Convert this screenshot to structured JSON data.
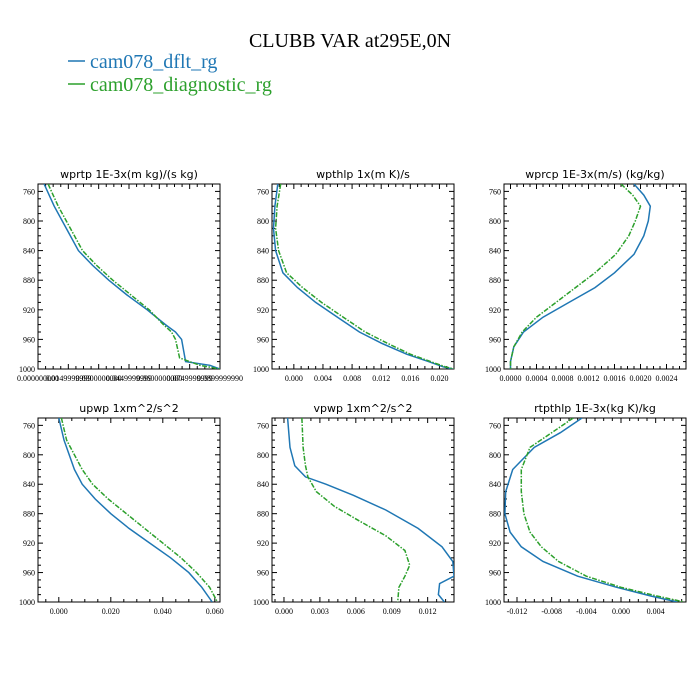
{
  "figure": {
    "title": "CLUBB VAR at295E,0N",
    "legend": [
      {
        "label": "cam078_dflt_rg",
        "color": "#1f77b4"
      },
      {
        "label": "cam078_diagnostic_rg",
        "color": "#2ca02c"
      }
    ]
  },
  "chart_data": [
    {
      "type": "line",
      "title": "wprtp  1E-3x(m kg)/(s kg)",
      "xlim": [
        0,
        0.09
      ],
      "ylim": [
        1000,
        750
      ],
      "xticks": [
        0,
        0.015,
        0.03,
        0.045,
        0.06,
        0.075,
        0.09
      ],
      "xtick_labels": [
        "0.000000000",
        "0.0149999999",
        "0.0300000000",
        "0.0449999999",
        "0.0600000000",
        "0.0749999999",
        "0.0899999990"
      ],
      "yticks": [
        760,
        800,
        840,
        880,
        920,
        960,
        1000
      ],
      "series": [
        {
          "name": "cam078_dflt_rg",
          "color": "#1f77b4",
          "dash": false,
          "x": [
            0.003,
            0.008,
            0.014,
            0.02,
            0.027,
            0.035,
            0.044,
            0.054,
            0.063,
            0.068,
            0.071,
            0.073,
            0.085,
            0.09
          ],
          "y": [
            750,
            780,
            810,
            840,
            860,
            880,
            900,
            920,
            940,
            950,
            960,
            990,
            995,
            1000
          ]
        },
        {
          "name": "cam078_diagnostic_rg",
          "color": "#2ca02c",
          "dash": true,
          "x": [
            0.005,
            0.01,
            0.016,
            0.022,
            0.029,
            0.037,
            0.046,
            0.055,
            0.062,
            0.066,
            0.068,
            0.07,
            0.08,
            0.09
          ],
          "y": [
            750,
            780,
            810,
            840,
            860,
            880,
            900,
            920,
            940,
            950,
            960,
            985,
            995,
            1000
          ]
        }
      ]
    },
    {
      "type": "line",
      "title": "wpthlp  1x(m K)/s",
      "xlim": [
        -0.003,
        0.022
      ],
      "ylim": [
        1000,
        750
      ],
      "xticks": [
        0,
        0.004,
        0.008,
        0.012,
        0.016,
        0.02
      ],
      "xtick_labels": [
        "0.000",
        "0.004",
        "0.008",
        "0.012",
        "0.016",
        "0.020"
      ],
      "yticks": [
        760,
        800,
        840,
        880,
        920,
        960,
        1000
      ],
      "series": [
        {
          "name": "cam078_dflt_rg",
          "color": "#1f77b4",
          "dash": false,
          "x": [
            -0.0022,
            -0.0026,
            -0.0028,
            -0.0025,
            -0.0015,
            0.0005,
            0.003,
            0.006,
            0.009,
            0.012,
            0.0155,
            0.0185,
            0.0205,
            0.0218
          ],
          "y": [
            750,
            780,
            810,
            840,
            870,
            890,
            910,
            930,
            950,
            965,
            980,
            990,
            997,
            1000
          ]
        },
        {
          "name": "cam078_diagnostic_rg",
          "color": "#2ca02c",
          "dash": true,
          "x": [
            -0.0018,
            -0.0023,
            -0.0025,
            -0.0021,
            -0.001,
            0.0012,
            0.0038,
            0.0068,
            0.0098,
            0.0128,
            0.016,
            0.0188,
            0.0208,
            0.022
          ],
          "y": [
            750,
            780,
            810,
            840,
            870,
            890,
            910,
            930,
            950,
            965,
            980,
            990,
            997,
            1000
          ]
        }
      ]
    },
    {
      "type": "line",
      "title": "wprcp  1E-3x(m/s) (kg/kg)",
      "xlim": [
        -0.0001,
        0.0027
      ],
      "ylim": [
        1000,
        750
      ],
      "xticks": [
        0,
        0.0004,
        0.0008,
        0.0012,
        0.0016,
        0.002,
        0.0024
      ],
      "xtick_labels": [
        "0.0000",
        "0.0004",
        "0.0008",
        "0.0012",
        "0.0016",
        "0.0020",
        "0.0024"
      ],
      "yticks": [
        760,
        800,
        840,
        880,
        920,
        960,
        1000
      ],
      "series": [
        {
          "name": "cam078_dflt_rg",
          "color": "#1f77b4",
          "dash": false,
          "x": [
            0.0019,
            0.00205,
            0.00215,
            0.00212,
            0.00205,
            0.0019,
            0.0016,
            0.0013,
            0.0009,
            0.0005,
            0.0002,
            5e-05,
            0.0,
            0.0
          ],
          "y": [
            750,
            765,
            780,
            800,
            820,
            845,
            870,
            890,
            910,
            930,
            950,
            970,
            990,
            1000
          ]
        },
        {
          "name": "cam078_diagnostic_rg",
          "color": "#2ca02c",
          "dash": true,
          "x": [
            0.0017,
            0.00188,
            0.002,
            0.00192,
            0.00182,
            0.00162,
            0.0013,
            0.001,
            0.0007,
            0.0004,
            0.00018,
            5e-05,
            0.0,
            0.0
          ],
          "y": [
            750,
            765,
            780,
            800,
            820,
            845,
            870,
            890,
            910,
            930,
            950,
            970,
            990,
            1000
          ]
        }
      ]
    },
    {
      "type": "line",
      "title": "upwp  1xm^2/s^2",
      "xlim": [
        -0.008,
        0.062
      ],
      "ylim": [
        1000,
        750
      ],
      "xticks": [
        0,
        0.02,
        0.04,
        0.06
      ],
      "xtick_labels": [
        "0.000",
        "0.020",
        "0.040",
        "0.060"
      ],
      "yticks": [
        760,
        800,
        840,
        880,
        920,
        960,
        1000
      ],
      "series": [
        {
          "name": "cam078_dflt_rg",
          "color": "#1f77b4",
          "dash": false,
          "x": [
            0.0,
            0.002,
            0.004,
            0.006,
            0.009,
            0.014,
            0.02,
            0.027,
            0.035,
            0.043,
            0.05,
            0.055,
            0.059
          ],
          "y": [
            750,
            780,
            800,
            820,
            840,
            860,
            880,
            900,
            920,
            940,
            960,
            980,
            1000
          ]
        },
        {
          "name": "cam078_diagnostic_rg",
          "color": "#2ca02c",
          "dash": true,
          "x": [
            0.001,
            0.003,
            0.006,
            0.009,
            0.013,
            0.019,
            0.026,
            0.033,
            0.04,
            0.047,
            0.053,
            0.058,
            0.061
          ],
          "y": [
            750,
            780,
            800,
            820,
            840,
            860,
            880,
            900,
            920,
            940,
            960,
            980,
            1000
          ]
        }
      ]
    },
    {
      "type": "line",
      "title": "vpwp  1xm^2/s^2",
      "xlim": [
        -0.001,
        0.0142
      ],
      "ylim": [
        1000,
        750
      ],
      "xticks": [
        0,
        0.003,
        0.006,
        0.009,
        0.012
      ],
      "xtick_labels": [
        "0.000",
        "0.003",
        "0.006",
        "0.009",
        "0.012"
      ],
      "yticks": [
        760,
        800,
        840,
        880,
        920,
        960,
        1000
      ],
      "series": [
        {
          "name": "cam078_dflt_rg",
          "color": "#1f77b4",
          "dash": false,
          "x": [
            0.0003,
            0.0005,
            0.0009,
            0.0018,
            0.0035,
            0.0058,
            0.0085,
            0.0112,
            0.0132,
            0.0141,
            0.0142,
            0.013,
            0.0129,
            0.0134
          ],
          "y": [
            750,
            790,
            815,
            830,
            840,
            855,
            875,
            900,
            925,
            945,
            965,
            975,
            990,
            1000
          ]
        },
        {
          "name": "cam078_diagnostic_rg",
          "color": "#2ca02c",
          "dash": true,
          "x": [
            0.0015,
            0.0016,
            0.0018,
            0.002,
            0.0027,
            0.0042,
            0.0063,
            0.0085,
            0.0101,
            0.0105,
            0.0101,
            0.0096,
            0.0095
          ],
          "y": [
            750,
            790,
            815,
            830,
            850,
            870,
            890,
            910,
            930,
            950,
            965,
            980,
            1000
          ]
        }
      ]
    },
    {
      "type": "line",
      "title": "rtpthlp  1E-3x(kg K)/kg",
      "xlim": [
        -0.0135,
        0.0075
      ],
      "ylim": [
        1000,
        750
      ],
      "xticks": [
        -0.012,
        -0.008,
        -0.004,
        0,
        0.004
      ],
      "xtick_labels": [
        "-0.012",
        "-0.008",
        "-0.004",
        "0.000",
        "0.004"
      ],
      "yticks": [
        760,
        800,
        840,
        880,
        920,
        960,
        1000
      ],
      "series": [
        {
          "name": "cam078_dflt_rg",
          "color": "#1f77b4",
          "dash": false,
          "x": [
            -0.0045,
            -0.007,
            -0.01,
            -0.0125,
            -0.0133,
            -0.0134,
            -0.0128,
            -0.0115,
            -0.009,
            -0.005,
            -0.0005,
            0.0035,
            0.0065
          ],
          "y": [
            750,
            770,
            790,
            820,
            850,
            880,
            905,
            925,
            945,
            965,
            980,
            992,
            1000
          ]
        },
        {
          "name": "cam078_diagnostic_rg",
          "color": "#2ca02c",
          "dash": true,
          "x": [
            -0.0055,
            -0.008,
            -0.0105,
            -0.0115,
            -0.0115,
            -0.0112,
            -0.0105,
            -0.0092,
            -0.0072,
            -0.004,
            0.0,
            0.0042,
            0.0073
          ],
          "y": [
            750,
            770,
            790,
            820,
            850,
            880,
            905,
            925,
            945,
            965,
            980,
            992,
            1000
          ]
        }
      ]
    }
  ]
}
